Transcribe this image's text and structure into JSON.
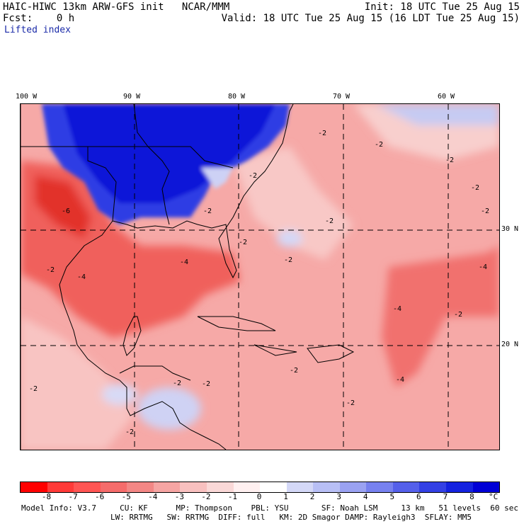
{
  "header": {
    "model_line": "HAIC-HIWC 13km ARW-GFS init   NCAR/MMM",
    "init_line": "Init: 18 UTC Tue 25 Aug 15",
    "fcst_line": "Fcst:    0 h",
    "valid_line": "Valid: 18 UTC Tue 25 Aug 15 (16 LDT Tue 25 Aug 15)",
    "field_label": "Lifted index"
  },
  "map": {
    "lon_labels": [
      "100 W",
      "90 W",
      "80 W",
      "70 W",
      "60 W"
    ],
    "lat_labels": [
      "30 N",
      "20 N"
    ],
    "contour_labels": [
      "-2",
      "-4",
      "-6",
      "-2",
      "-2",
      "-2",
      "-2",
      "-4",
      "-2",
      "-2",
      "-2",
      "-4",
      "-2",
      "-2",
      "-4",
      "-2",
      "-2",
      "-2",
      "-2",
      "-2",
      "-4",
      "-2",
      "-2",
      "-2"
    ]
  },
  "colorbar": {
    "colors": [
      "#ff0000",
      "#ff3a38",
      "#ff5553",
      "#f56c6b",
      "#f38785",
      "#f6a5a3",
      "#f8c0bf",
      "#fad8d7",
      "#fff0f0",
      "#ffffff",
      "#d4d8f7",
      "#b8bff5",
      "#9aa2f2",
      "#7781ef",
      "#5560ea",
      "#3340e4",
      "#1422df",
      "#0000d6"
    ],
    "tick_labels": [
      "-8",
      "-7",
      "-6",
      "-5",
      "-4",
      "-3",
      "-2",
      "-1",
      "0",
      "1",
      "2",
      "3",
      "4",
      "5",
      "6",
      "7",
      "8"
    ],
    "unit": "°C"
  },
  "footer": {
    "line1": "Model Info: V3.7     CU: KF      MP: Thompson    PBL: YSU       SF: Noah LSM     13 km   51 levels  60 sec",
    "line2": "LW: RRTMG   SW: RRTMG  DIFF: full   KM: 2D Smagor DAMP: Rayleigh3  SFLAY: MM5"
  }
}
